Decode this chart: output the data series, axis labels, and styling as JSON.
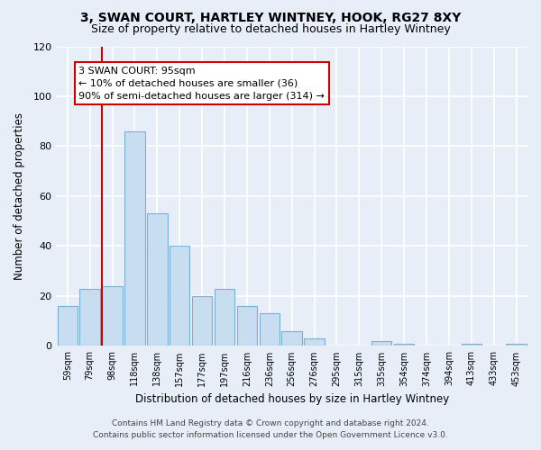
{
  "title": "3, SWAN COURT, HARTLEY WINTNEY, HOOK, RG27 8XY",
  "subtitle": "Size of property relative to detached houses in Hartley Wintney",
  "xlabel": "Distribution of detached houses by size in Hartley Wintney",
  "ylabel": "Number of detached properties",
  "bar_labels": [
    "59sqm",
    "79sqm",
    "98sqm",
    "118sqm",
    "138sqm",
    "157sqm",
    "177sqm",
    "197sqm",
    "216sqm",
    "236sqm",
    "256sqm",
    "276sqm",
    "295sqm",
    "315sqm",
    "335sqm",
    "354sqm",
    "374sqm",
    "394sqm",
    "413sqm",
    "433sqm",
    "453sqm"
  ],
  "bar_values": [
    16,
    23,
    24,
    86,
    53,
    40,
    20,
    23,
    16,
    13,
    6,
    3,
    0,
    0,
    2,
    1,
    0,
    0,
    1,
    0,
    1
  ],
  "bar_color": "#c8ddf0",
  "bar_edge_color": "#7ab0d4",
  "vline_color": "#cc0000",
  "ylim": [
    0,
    120
  ],
  "yticks": [
    0,
    20,
    40,
    60,
    80,
    100,
    120
  ],
  "annotation_title": "3 SWAN COURT: 95sqm",
  "annotation_line1": "← 10% of detached houses are smaller (36)",
  "annotation_line2": "90% of semi-detached houses are larger (314) →",
  "annotation_box_color": "#ffffff",
  "annotation_box_edge": "#cc0000",
  "footer_line1": "Contains HM Land Registry data © Crown copyright and database right 2024.",
  "footer_line2": "Contains public sector information licensed under the Open Government Licence v3.0.",
  "background_color": "#e8eef8",
  "grid_color": "#ffffff"
}
